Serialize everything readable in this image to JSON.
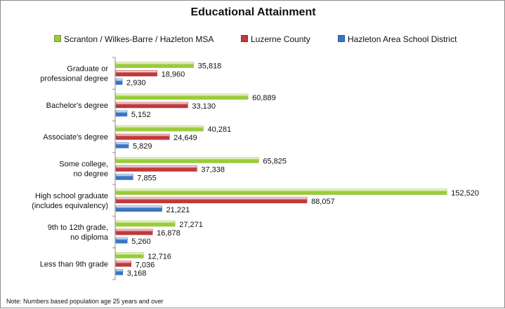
{
  "chart_data": {
    "type": "bar",
    "orientation": "horizontal",
    "title": "Educational Attainment",
    "categories": [
      [
        "Graduate or",
        "professional degree"
      ],
      [
        "Bachelor's degree"
      ],
      [
        "Associate's degree"
      ],
      [
        "Some college,",
        "no degree"
      ],
      [
        "High school graduate",
        "(includes equivalency)"
      ],
      [
        "9th to 12th grade,",
        "no diploma"
      ],
      [
        "Less than 9th grade"
      ]
    ],
    "series": [
      {
        "name": "Scranton / Wilkes-Barre / Hazleton MSA",
        "color": "#9bcb3c",
        "values": [
          35818,
          60889,
          40281,
          65825,
          152520,
          27271,
          12716
        ],
        "labels": [
          "35,818",
          "60,889",
          "40,281",
          "65,825",
          "152,520",
          "27,271",
          "12,716"
        ]
      },
      {
        "name": "Luzerne County",
        "color": "#c0393b",
        "values": [
          18960,
          33130,
          24649,
          37338,
          88057,
          16878,
          7036
        ],
        "labels": [
          "18,960",
          "33,130",
          "24,649",
          "37,338",
          "88,057",
          "16,878",
          "7,036"
        ]
      },
      {
        "name": "Hazleton Area School District",
        "color": "#3b74c3",
        "values": [
          2930,
          5152,
          5829,
          7855,
          21221,
          5260,
          3168
        ],
        "labels": [
          "2,930",
          "5,152",
          "5,829",
          "7,855",
          "21,221",
          "5,260",
          "3,168"
        ]
      }
    ],
    "xlim": [
      0,
      160000
    ],
    "grid": false,
    "legend_position": "top",
    "note": "Note: Numbers based population age 25 years and over"
  }
}
